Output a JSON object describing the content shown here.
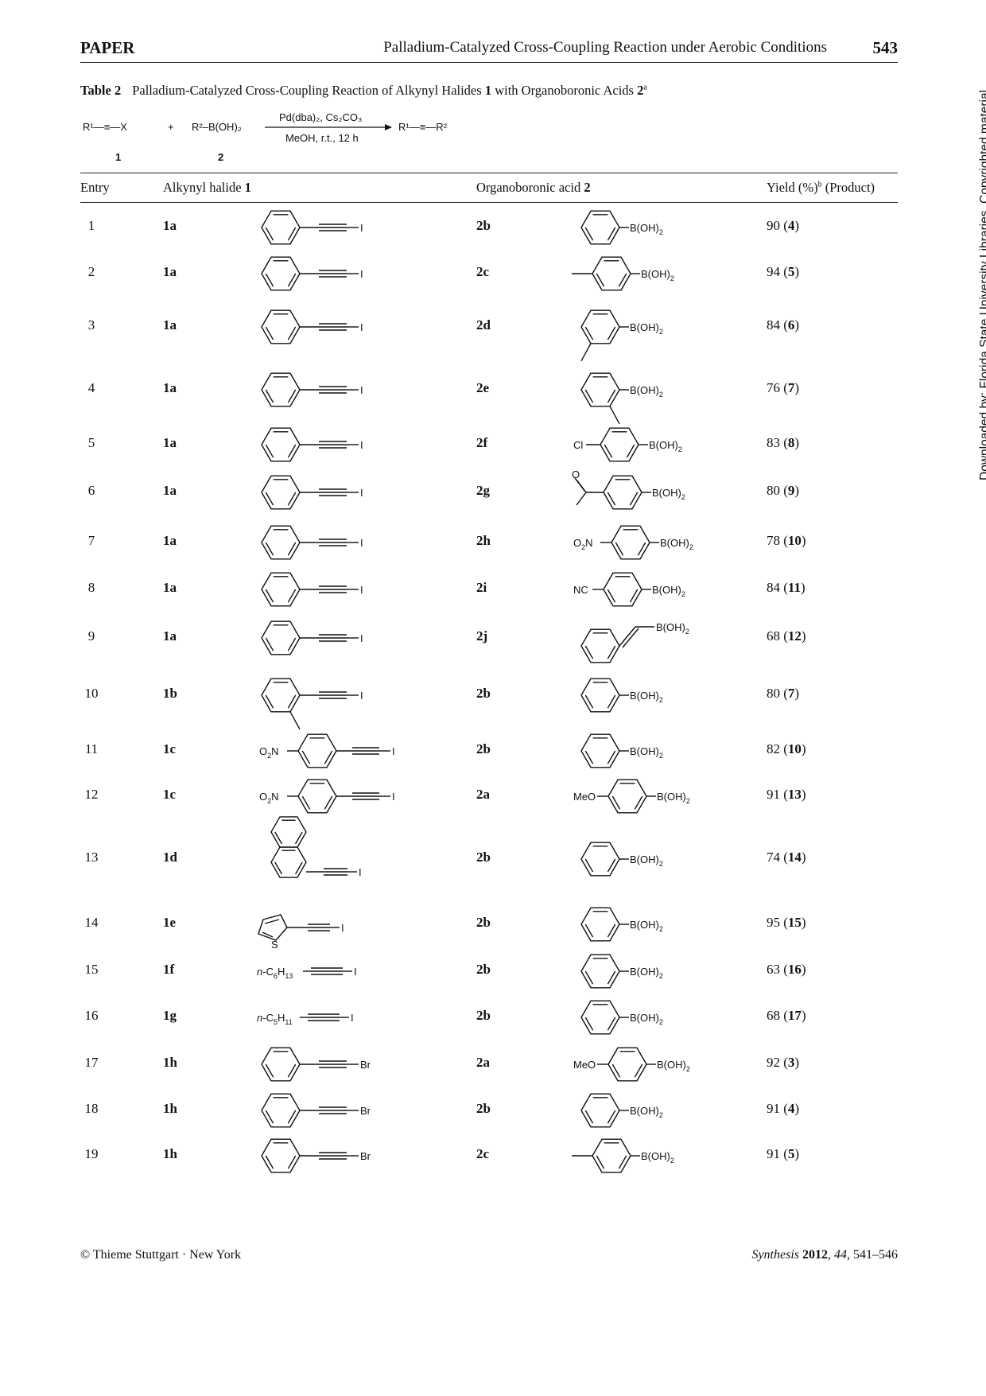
{
  "header": {
    "journal": "PAPER",
    "running_title": "Palladium-Catalyzed Cross-Coupling Reaction under Aerobic Conditions",
    "page_number": "543"
  },
  "table": {
    "label": "Table 2",
    "caption": "Palladium-Catalyzed Cross-Coupling Reaction of Alkynyl Halides ",
    "caption_bold_1": "1",
    "caption_mid": " with Organoboronic Acids ",
    "caption_bold_2": "2",
    "caption_sup": "a",
    "scheme": {
      "reactant1": "R¹—≡—X",
      "plus": "+",
      "reactant2": "R²–B(OH)₂",
      "conditions_top": "Pd(dba)₂, Cs₂CO₃",
      "conditions_bottom": "MeOH, r.t., 12 h",
      "product": "R¹—≡—R²",
      "label1": "1",
      "label2": "2"
    },
    "columns": {
      "entry": "Entry",
      "halide": "Alkynyl halide ",
      "halide_bold": "1",
      "acid": "Organoboronic acid ",
      "acid_bold": "2",
      "yield": "Yield (%)",
      "yield_sup": "b",
      "yield_tail": " (Product)"
    },
    "rows": [
      {
        "entry": "1",
        "halide": "1a",
        "halide_struct": "phenyl-alkyne-I",
        "acid": "2b",
        "acid_struct": "phenyl-B(OH)2",
        "yield": "90",
        "product": "4"
      },
      {
        "entry": "2",
        "halide": "1a",
        "halide_struct": "phenyl-alkyne-I",
        "acid": "2c",
        "acid_struct": "4-methylphenyl-B(OH)2",
        "yield": "94",
        "product": "5"
      },
      {
        "entry": "3",
        "halide": "1a",
        "halide_struct": "phenyl-alkyne-I",
        "acid": "2d",
        "acid_struct": "3-methylphenyl-B(OH)2",
        "yield": "84",
        "product": "6"
      },
      {
        "entry": "4",
        "halide": "1a",
        "halide_struct": "phenyl-alkyne-I",
        "acid": "2e",
        "acid_struct": "2-methylphenyl-B(OH)2",
        "yield": "76",
        "product": "7"
      },
      {
        "entry": "5",
        "halide": "1a",
        "halide_struct": "phenyl-alkyne-I",
        "acid": "2f",
        "acid_struct": "4-chlorophenyl-B(OH)2",
        "yield": "83",
        "product": "8"
      },
      {
        "entry": "6",
        "halide": "1a",
        "halide_struct": "phenyl-alkyne-I",
        "acid": "2g",
        "acid_struct": "4-acetylphenyl-B(OH)2",
        "yield": "80",
        "product": "9"
      },
      {
        "entry": "7",
        "halide": "1a",
        "halide_struct": "phenyl-alkyne-I",
        "acid": "2h",
        "acid_struct": "4-nitrophenyl-B(OH)2",
        "yield": "78",
        "product": "10"
      },
      {
        "entry": "8",
        "halide": "1a",
        "halide_struct": "phenyl-alkyne-I",
        "acid": "2i",
        "acid_struct": "4-cyanophenyl-B(OH)2",
        "yield": "84",
        "product": "11"
      },
      {
        "entry": "9",
        "halide": "1a",
        "halide_struct": "phenyl-alkyne-I",
        "acid": "2j",
        "acid_struct": "styryl-B(OH)2",
        "yield": "68",
        "product": "12"
      },
      {
        "entry": "10",
        "halide": "1b",
        "halide_struct": "2-methylphenyl-alkyne-I",
        "acid": "2b",
        "acid_struct": "phenyl-B(OH)2",
        "yield": "80",
        "product": "7"
      },
      {
        "entry": "11",
        "halide": "1c",
        "halide_struct": "4-nitrophenyl-alkyne-I",
        "acid": "2b",
        "acid_struct": "phenyl-B(OH)2",
        "yield": "82",
        "product": "10"
      },
      {
        "entry": "12",
        "halide": "1c",
        "halide_struct": "4-nitrophenyl-alkyne-I",
        "acid": "2a",
        "acid_struct": "4-methoxyphenyl-B(OH)2",
        "yield": "91",
        "product": "13"
      },
      {
        "entry": "13",
        "halide": "1d",
        "halide_struct": "naphthyl-alkyne-I",
        "acid": "2b",
        "acid_struct": "phenyl-B(OH)2",
        "yield": "74",
        "product": "14"
      },
      {
        "entry": "14",
        "halide": "1e",
        "halide_struct": "thienyl-alkyne-I",
        "acid": "2b",
        "acid_struct": "phenyl-B(OH)2",
        "yield": "95",
        "product": "15"
      },
      {
        "entry": "15",
        "halide": "1f",
        "halide_struct": "n-C6H13-alkyne-I",
        "acid": "2b",
        "acid_struct": "phenyl-B(OH)2",
        "yield": "63",
        "product": "16"
      },
      {
        "entry": "16",
        "halide": "1g",
        "halide_struct": "n-C5H11-alkyne-I",
        "acid": "2b",
        "acid_struct": "phenyl-B(OH)2",
        "yield": "68",
        "product": "17"
      },
      {
        "entry": "17",
        "halide": "1h",
        "halide_struct": "phenyl-alkyne-Br",
        "acid": "2a",
        "acid_struct": "4-methoxyphenyl-B(OH)2",
        "yield": "92",
        "product": "3"
      },
      {
        "entry": "18",
        "halide": "1h",
        "halide_struct": "phenyl-alkyne-Br",
        "acid": "2b",
        "acid_struct": "phenyl-B(OH)2",
        "yield": "91",
        "product": "4"
      },
      {
        "entry": "19",
        "halide": "1h",
        "halide_struct": "phenyl-alkyne-Br",
        "acid": "2c",
        "acid_struct": "4-methylphenyl-B(OH)2",
        "yield": "91",
        "product": "5"
      }
    ]
  },
  "structure_labels": {
    "I": "I",
    "Br": "Br",
    "BOH2": "B(OH)",
    "sub2": "2",
    "Cl": "Cl",
    "O": "O",
    "NC": "NC",
    "MeO": "MeO",
    "O2N_a": "O",
    "O2N_b": "N",
    "S": "S",
    "nhex_a": "n",
    "nhex_b": "-C",
    "nhex_c": "6",
    "nhex_d": "H",
    "nhex_e": "13",
    "npen_c": "5",
    "npen_e": "11"
  },
  "footer": {
    "left": "© Thieme  Stuttgart · New York",
    "journal": "Synthesis",
    "year": "2012",
    "volume": "44",
    "pages": ", 541–546"
  },
  "watermark": "Downloaded by: Florida State University Libraries. Copyrighted material."
}
